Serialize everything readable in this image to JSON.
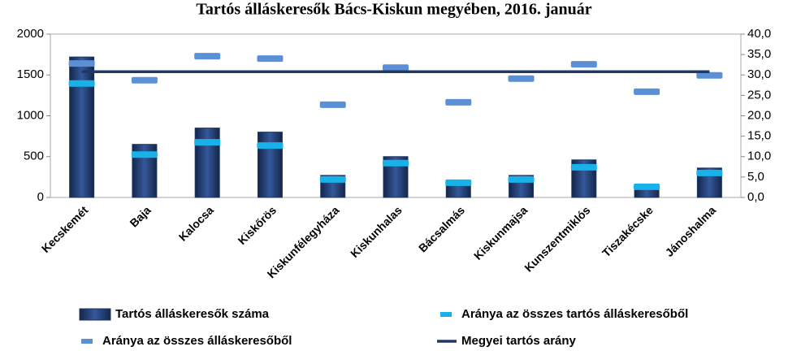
{
  "chart_data": {
    "type": "bar",
    "title": "Tartós álláskeresők Bács-Kiskun megyében, 2016. január",
    "categories": [
      "Kecskemét",
      "Baja",
      "Kalocsa",
      "Kiskőrös",
      "Kiskunfélegyháza",
      "Kiskunhalas",
      "Bácsalmás",
      "Kiskunmajsa",
      "Kunszentmiklós",
      "Tiszakécske",
      "Jánoshalma"
    ],
    "series": [
      {
        "name": "Tartós álláskeresők száma",
        "style": "bar",
        "color": "#1f3864",
        "values": [
          1720,
          650,
          850,
          800,
          270,
          500,
          170,
          270,
          460,
          150,
          360
        ]
      },
      {
        "name": "Aránya az összes tartós álláskeresőből",
        "style": "dash",
        "axis": "y2",
        "color": "#19b2e8",
        "values": [
          27.9,
          10.5,
          13.5,
          12.7,
          4.4,
          8.4,
          3.6,
          4.4,
          7.4,
          2.6,
          6.0
        ]
      },
      {
        "name": "Aránya az összes álláskeresőből",
        "style": "dash",
        "axis": "y2",
        "color": "#5b8fd6",
        "values": [
          32.8,
          28.7,
          34.6,
          34.0,
          22.7,
          31.8,
          23.3,
          29.1,
          32.6,
          25.9,
          29.9
        ]
      },
      {
        "name": "Megyei tartós arány",
        "style": "line",
        "axis": "y2",
        "color": "#1f3864",
        "values": [
          30.8,
          30.8,
          30.8,
          30.8,
          30.8,
          30.8,
          30.8,
          30.8,
          30.8,
          30.8,
          30.8
        ]
      }
    ],
    "ylim": [
      0,
      2000
    ],
    "yticks": [
      0,
      500,
      1000,
      1500,
      2000
    ],
    "y2lim": [
      0,
      40
    ],
    "y2ticks": [
      {
        "value": 0,
        "label": "0,0"
      },
      {
        "value": 5,
        "label": "5,0"
      },
      {
        "value": 10,
        "label": "10,0"
      },
      {
        "value": 15,
        "label": "15,0"
      },
      {
        "value": 20,
        "label": "20,0"
      },
      {
        "value": 25,
        "label": "25,0"
      },
      {
        "value": 30,
        "label": "30,0"
      },
      {
        "value": 35,
        "label": "35,0"
      },
      {
        "value": 40,
        "label": "40,0"
      }
    ]
  }
}
